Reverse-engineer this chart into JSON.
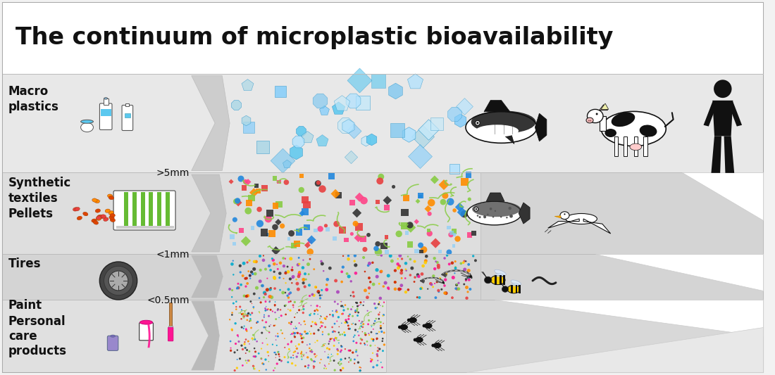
{
  "title": "The continuum of microplastic bioavailability",
  "title_fontsize": 24,
  "label_fontsize": 12,
  "size_label_fontsize": 10,
  "bg_outer": "#f2f2f2",
  "bg_title": "#ffffff",
  "bg_row1": "#e8e8e8",
  "bg_row2": "#dedede",
  "bg_row3": "#d4d4d4",
  "bg_row4": "#e0e0e0",
  "bg_box2": "#d8d8d8",
  "bg_box3": "#d0d0d0",
  "arrow_color": "#cccccc",
  "divider_color": "#bbbbbb",
  "row1_label": "Macro\nplastics",
  "row2_label": "Synthetic\ntextiles\nPellets",
  "row3_label": "Tires",
  "row4_label1": "Paint",
  "row4_label2": "Personal\ncare\nproducts",
  "size1": ">5mm",
  "size2": "<1mm",
  "size3": "<0.5mm",
  "particle_colors_med": [
    "#e84040",
    "#ff8c00",
    "#88cc44",
    "#333333",
    "#2288dd",
    "#ff4488"
  ],
  "particle_colors_small": [
    "#e84040",
    "#ff8c00",
    "#88cc44",
    "#333333",
    "#2288dd",
    "#ff1493",
    "#aa44bb",
    "#ffcc00",
    "#00aacc",
    "#cc2200"
  ],
  "blue_colors": [
    "#87cefa",
    "#add8e6",
    "#5bc8ef",
    "#b0e2ff",
    "#7ec8f0",
    "#c5e8f8"
  ]
}
